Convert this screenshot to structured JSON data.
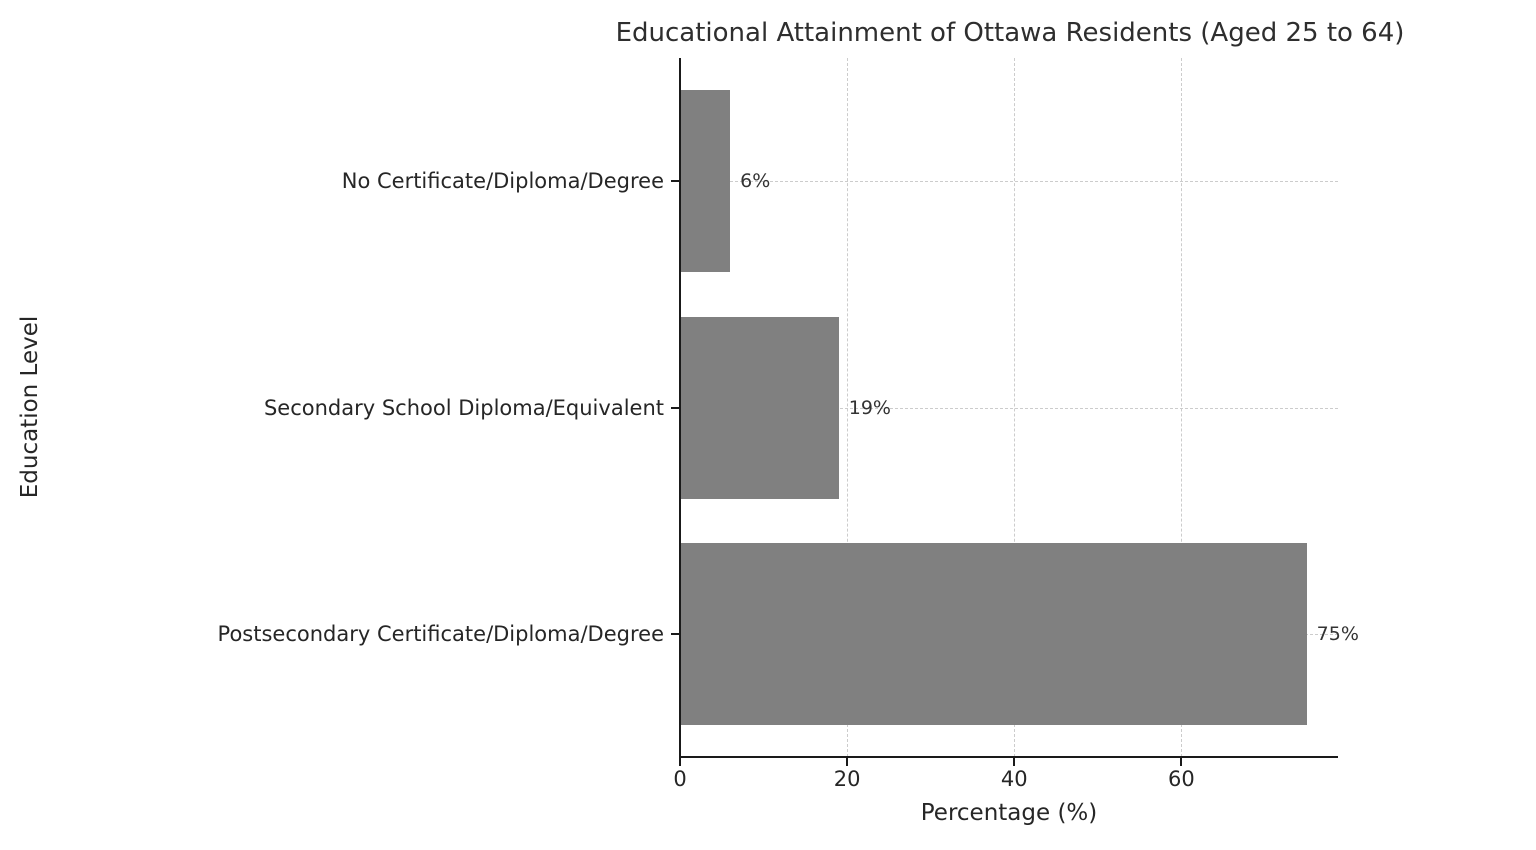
{
  "chart_data": {
    "type": "bar",
    "orientation": "horizontal",
    "title": "Educational Attainment of Ottawa Residents (Aged 25 to 64)",
    "xlabel": "Percentage (%)",
    "ylabel": "Education Level",
    "categories": [
      "No Certificate/Diploma/Degree",
      "Secondary School Diploma/Equivalent",
      "Postsecondary Certificate/Diploma/Degree"
    ],
    "values": [
      6,
      19,
      75
    ],
    "value_labels": [
      "6%",
      "19%",
      "75%"
    ],
    "x_ticks": [
      0,
      20,
      40,
      60
    ],
    "xlim": [
      0,
      78.75
    ],
    "grid": "dashed-horizontal-and-vertical",
    "legend": "none",
    "colors": {
      "bar": "#808080",
      "text": "#262626",
      "grid": "#cccccc",
      "spine": "#1a1a1a"
    }
  }
}
